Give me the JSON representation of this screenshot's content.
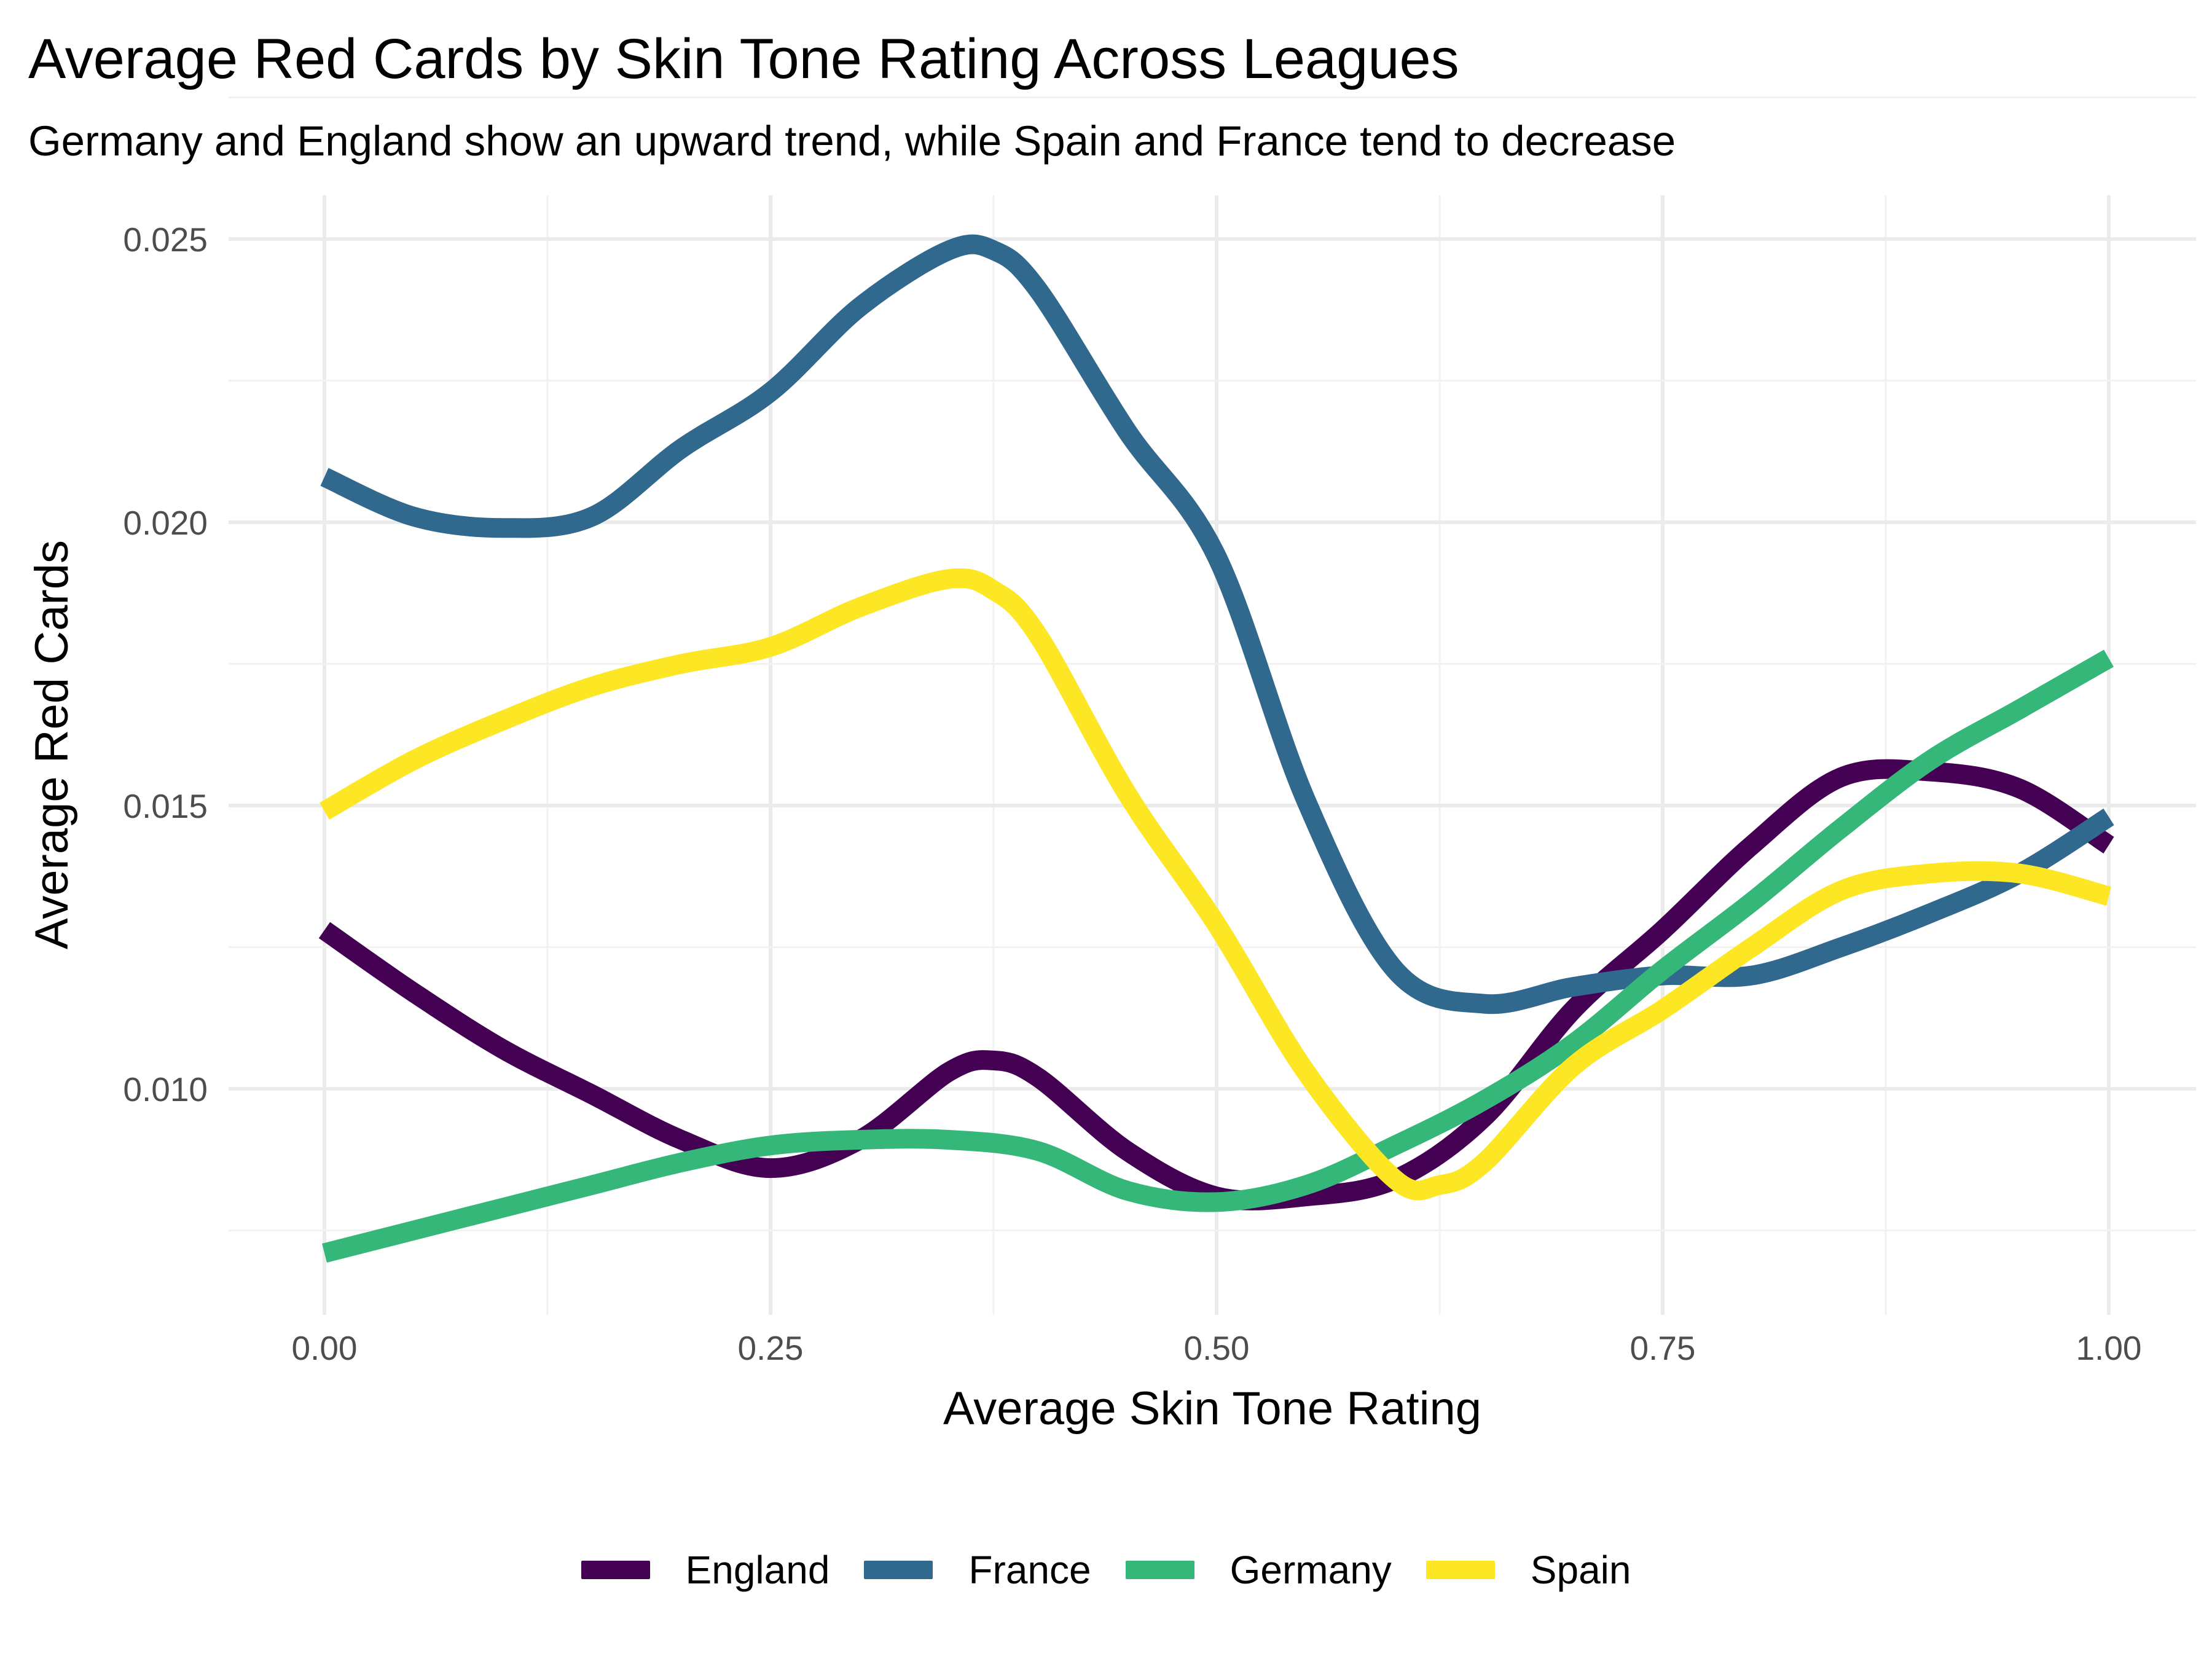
{
  "chart_data": {
    "type": "line",
    "title": "Average Red Cards by Skin Tone Rating Across Leagues",
    "subtitle": "Germany and England show an upward trend, while Spain and France tend to decrease",
    "xlabel": "Average Skin Tone Rating",
    "ylabel": "Average Red Cards",
    "xlim": [
      -0.05,
      1.03
    ],
    "ylim": [
      0.0065,
      0.0256
    ],
    "x_ticks": [
      0.0,
      0.25,
      0.5,
      0.75,
      1.0
    ],
    "x_tick_labels": [
      "0.00",
      "0.25",
      "0.50",
      "0.75",
      "1.00"
    ],
    "y_ticks": [
      0.01,
      0.015,
      0.02,
      0.025
    ],
    "y_tick_labels": [
      "0.010",
      "0.015",
      "0.020",
      "0.025"
    ],
    "grid": true,
    "legend_position": "bottom",
    "series": [
      {
        "name": "England",
        "color": "#440154",
        "x": [
          0.0,
          0.05,
          0.1,
          0.15,
          0.2,
          0.25,
          0.3,
          0.35,
          0.375,
          0.4,
          0.45,
          0.5,
          0.55,
          0.6,
          0.65,
          0.7,
          0.75,
          0.8,
          0.85,
          0.9,
          0.95,
          1.0
        ],
        "y": [
          0.0128,
          0.0117,
          0.0107,
          0.0099,
          0.0091,
          0.0086,
          0.0091,
          0.0103,
          0.0105,
          0.0102,
          0.0089,
          0.0081,
          0.0081,
          0.0084,
          0.0095,
          0.0114,
          0.0128,
          0.0143,
          0.0155,
          0.0156,
          0.0153,
          0.0143
        ]
      },
      {
        "name": "France",
        "color": "#31688E",
        "x": [
          0.0,
          0.05,
          0.1,
          0.15,
          0.2,
          0.25,
          0.3,
          0.35,
          0.375,
          0.4,
          0.45,
          0.5,
          0.55,
          0.6,
          0.65,
          0.7,
          0.75,
          0.8,
          0.85,
          0.9,
          0.95,
          1.0
        ],
        "y": [
          0.0208,
          0.0201,
          0.0199,
          0.0201,
          0.0213,
          0.0223,
          0.0238,
          0.0248,
          0.0248,
          0.0241,
          0.0216,
          0.0194,
          0.0151,
          0.0121,
          0.0115,
          0.0118,
          0.012,
          0.012,
          0.0125,
          0.0131,
          0.0138,
          0.0148
        ]
      },
      {
        "name": "Germany",
        "color": "#35B779",
        "x": [
          0.0,
          0.05,
          0.1,
          0.15,
          0.2,
          0.25,
          0.3,
          0.35,
          0.4,
          0.45,
          0.5,
          0.55,
          0.6,
          0.65,
          0.7,
          0.75,
          0.8,
          0.85,
          0.9,
          0.95,
          1.0
        ],
        "y": [
          0.0071,
          0.0075,
          0.0079,
          0.0083,
          0.0087,
          0.009,
          0.0091,
          0.0091,
          0.0089,
          0.0082,
          0.008,
          0.0083,
          0.009,
          0.0098,
          0.0108,
          0.0121,
          0.0133,
          0.0146,
          0.0158,
          0.0167,
          0.0176
        ]
      },
      {
        "name": "Spain",
        "color": "#FDE725",
        "x": [
          0.0,
          0.05,
          0.1,
          0.15,
          0.2,
          0.25,
          0.3,
          0.35,
          0.375,
          0.4,
          0.45,
          0.5,
          0.55,
          0.6,
          0.625,
          0.65,
          0.7,
          0.75,
          0.8,
          0.85,
          0.9,
          0.95,
          1.0
        ],
        "y": [
          0.0149,
          0.0158,
          0.0165,
          0.0171,
          0.0175,
          0.0178,
          0.0185,
          0.019,
          0.0188,
          0.018,
          0.0152,
          0.0129,
          0.0103,
          0.0084,
          0.0083,
          0.0087,
          0.0104,
          0.0114,
          0.0125,
          0.0135,
          0.0138,
          0.0138,
          0.0134
        ]
      }
    ]
  }
}
